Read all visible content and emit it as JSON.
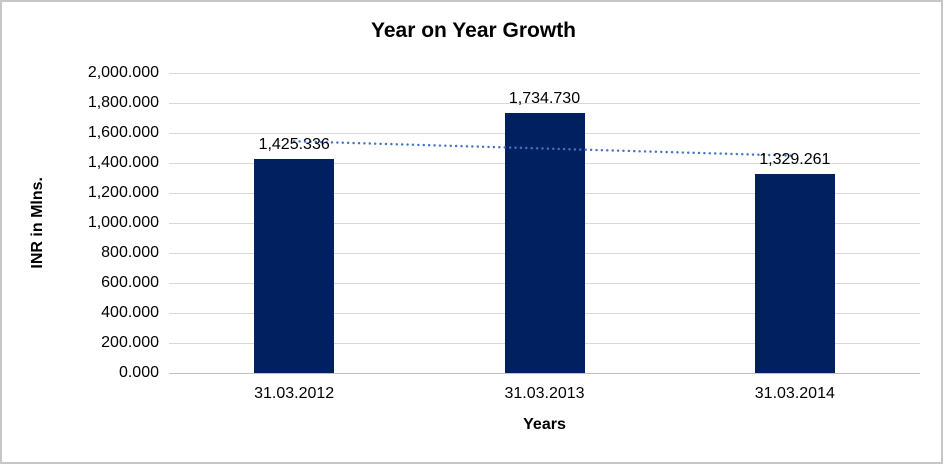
{
  "chart_data": {
    "type": "bar",
    "title": "Year on Year Growth",
    "xlabel": "Years",
    "ylabel": "INR in Mlns.",
    "categories": [
      "31.03.2012",
      "31.03.2013",
      "31.03.2014"
    ],
    "values": [
      1425.336,
      1734.73,
      1329.261
    ],
    "data_labels": [
      "1,425.336",
      "1,734.730",
      "1,329.261"
    ],
    "ylim": [
      0,
      2000
    ],
    "ytick_step": 200,
    "ytick_labels": [
      "0.000",
      "200.000",
      "400.000",
      "600.000",
      "800.000",
      "1,000.000",
      "1,200.000",
      "1,400.000",
      "1,600.000",
      "1,800.000",
      "2,000.000"
    ],
    "grid": true,
    "legend": "none",
    "trendline": {
      "type": "linear",
      "style": "dotted",
      "endpoint_values": [
        1544.48,
        1448.4
      ]
    },
    "colors": {
      "bar": "#002060",
      "trendline": "#4472C4",
      "gridline": "#D9D9D9",
      "axis_line": "#BFBFBF",
      "text": "#000000",
      "frame_border": "#C6C6C6",
      "background": "#FFFFFF"
    }
  }
}
